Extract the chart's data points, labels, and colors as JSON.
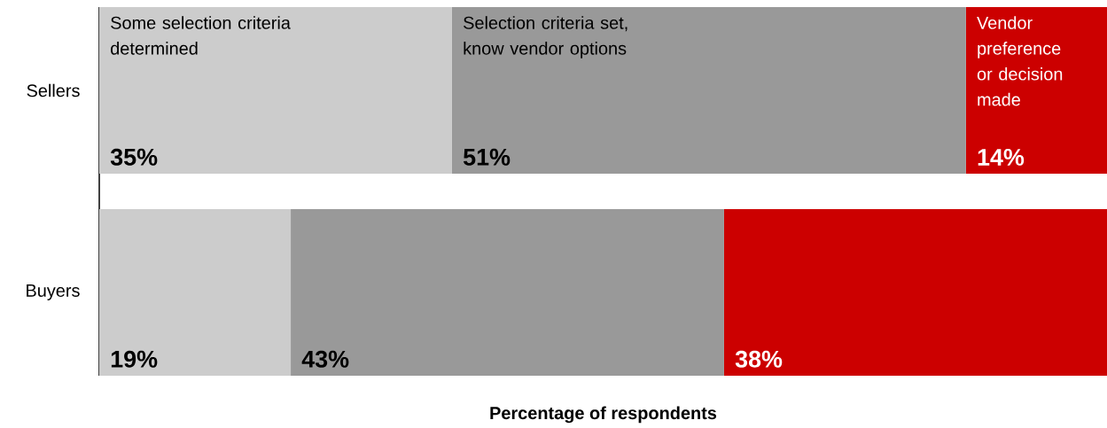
{
  "chart_data": {
    "type": "bar",
    "orientation": "horizontal",
    "stacked": true,
    "tick_labels": "y",
    "xlabel": "Percentage of respondents",
    "categories": [
      "Sellers",
      "Buyers"
    ],
    "series": [
      {
        "name": "Some selection criteria determined",
        "color": "#cccccc",
        "values": [
          35,
          19
        ],
        "value_labels": [
          "35%",
          "19%"
        ]
      },
      {
        "name": "Selection criteria set, know vendor options",
        "color": "#999999",
        "values": [
          51,
          43
        ],
        "value_labels": [
          "51%",
          "43%"
        ]
      },
      {
        "name": "Vendor preference or decision made",
        "color": "#cc0000",
        "values": [
          14,
          38
        ],
        "value_labels": [
          "14%",
          "38%"
        ]
      }
    ]
  }
}
